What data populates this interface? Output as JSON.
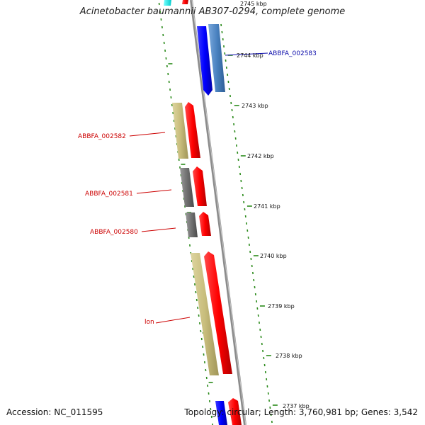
{
  "map": {
    "title": "Acinetobacter baumannii AB307-0294, complete genome",
    "accession": "Accession: NC_011595",
    "summary": "Topology: circular; Length: 3,760,981 bp; Genes: 3,542"
  },
  "ruler": {
    "labels": [
      "2745 kbp",
      "2744 kbp",
      "2743 kbp",
      "2742 kbp",
      "2741 kbp",
      "2740 kbp",
      "2739 kbp",
      "2738 kbp",
      "2737 kbp"
    ]
  },
  "genes": [
    {
      "label": "ABBFA_002583",
      "color": "#0a0aaa"
    },
    {
      "label": "ABBFA_002582",
      "color": "#cc0000"
    },
    {
      "label": "ABBFA_002581",
      "color": "#cc0000"
    },
    {
      "label": "ABBFA_002580",
      "color": "#cc0000"
    },
    {
      "label": "lon",
      "color": "#cc0000"
    }
  ],
  "colors": {
    "forward": "#ff0000",
    "reverse": "#0000ff",
    "blast": "#4a82c0",
    "cog_tan": "#c8bd7c",
    "cog_gray": "#707070",
    "backbone": "#8c8c8c",
    "tick": "#2a8a1a"
  }
}
